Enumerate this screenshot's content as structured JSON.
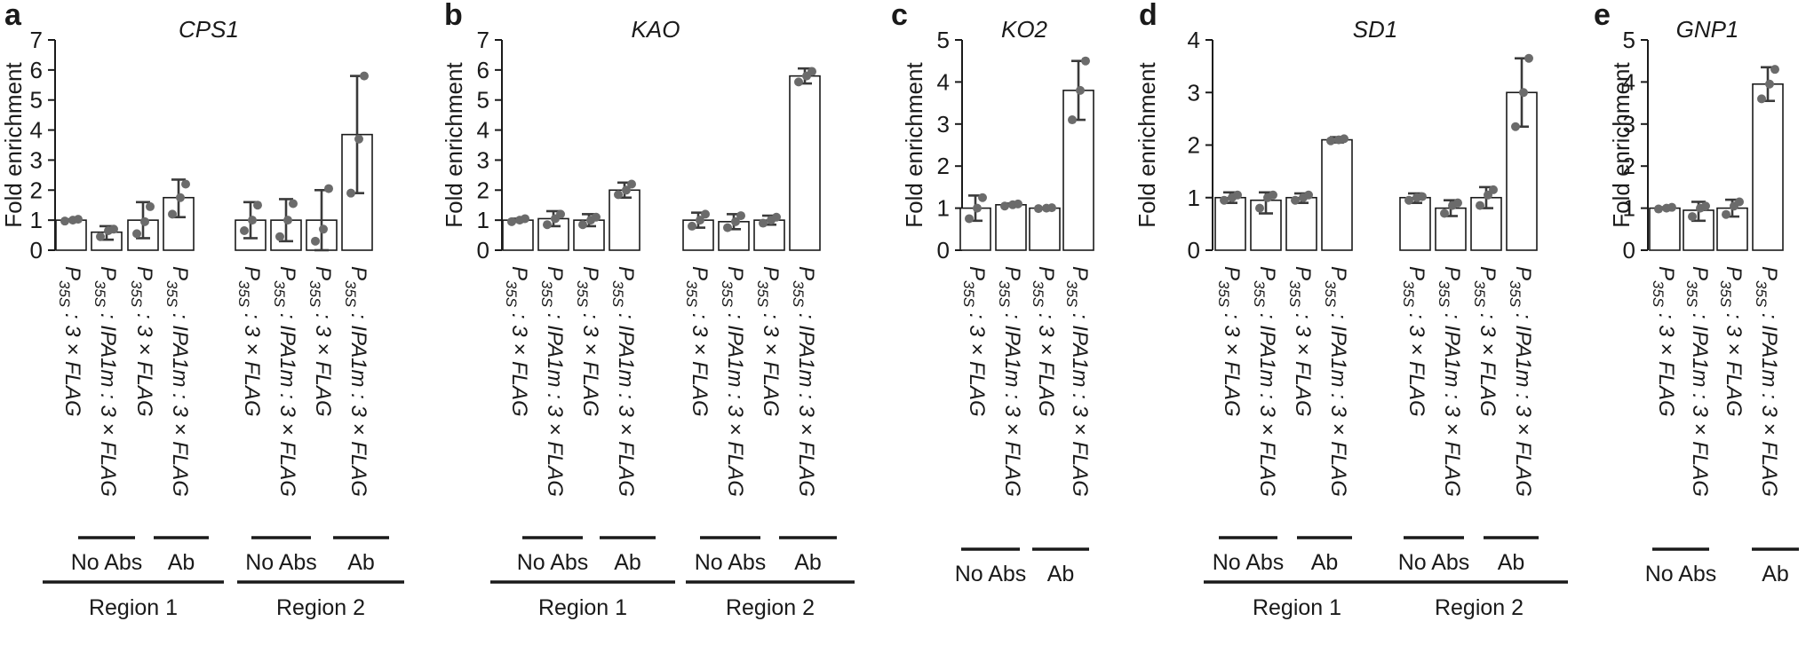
{
  "colors": {
    "bar_fill": "#ffffff",
    "bar_stroke": "#1a1a1a",
    "dot": "#6b6b6b",
    "error": "#3a3a3a"
  },
  "chart_data": [
    {
      "panel": "a",
      "type": "bar",
      "title": "CPS1",
      "ylabel": "Fold enrichment",
      "ylim": [
        0,
        7
      ],
      "yticks": [
        0,
        1,
        2,
        3,
        4,
        5,
        6,
        7
      ],
      "categories": [
        "3 × FLAG",
        "IPA1m : 3 × FLAG",
        "3 × FLAG",
        "IPA1m : 3 × FLAG",
        "3 × FLAG",
        "IPA1m : 3 × FLAG",
        "3 × FLAG",
        "IPA1m : 3 × FLAG"
      ],
      "category_prefix": "P",
      "category_subscript": "35S",
      "category_separator": " : ",
      "values": [
        1.0,
        0.6,
        1.0,
        1.75,
        1.0,
        1.0,
        1.0,
        3.85
      ],
      "err_low": [
        0.97,
        0.35,
        0.4,
        1.1,
        0.4,
        0.3,
        0.0,
        1.9
      ],
      "err_high": [
        1.03,
        0.8,
        1.6,
        2.35,
        1.6,
        1.7,
        2.0,
        5.8
      ],
      "points": [
        [
          0.97,
          1.0,
          1.03
        ],
        [
          0.45,
          0.65,
          0.7
        ],
        [
          0.55,
          0.95,
          1.45
        ],
        [
          1.2,
          1.75,
          2.2
        ],
        [
          0.65,
          1.0,
          1.5
        ],
        [
          0.45,
          1.0,
          1.55
        ],
        [
          0.3,
          0.7,
          2.05
        ],
        [
          1.9,
          3.7,
          5.8
        ]
      ],
      "antibody_groups": [
        "No Abs",
        "Ab",
        "No Abs",
        "Ab"
      ],
      "regions": [
        "Region 1",
        "Region 2"
      ]
    },
    {
      "panel": "b",
      "type": "bar",
      "title": "KAO",
      "ylabel": "Fold enrichment",
      "ylim": [
        0,
        7
      ],
      "yticks": [
        0,
        1,
        2,
        3,
        4,
        5,
        6,
        7
      ],
      "categories": [
        "3 × FLAG",
        "IPA1m : 3 × FLAG",
        "3 × FLAG",
        "IPA1m : 3 × FLAG",
        "3 × FLAG",
        "IPA1m : 3 × FLAG",
        "3 × FLAG",
        "IPA1m : 3 × FLAG"
      ],
      "category_prefix": "P",
      "category_subscript": "35S",
      "category_separator": " : ",
      "values": [
        1.0,
        1.05,
        1.0,
        2.0,
        1.0,
        0.95,
        1.0,
        5.8
      ],
      "err_low": [
        0.95,
        0.8,
        0.8,
        1.75,
        0.75,
        0.7,
        0.85,
        5.55
      ],
      "err_high": [
        1.05,
        1.3,
        1.2,
        2.25,
        1.25,
        1.2,
        1.15,
        6.05
      ],
      "points": [
        [
          0.95,
          1.0,
          1.05
        ],
        [
          0.85,
          1.05,
          1.2
        ],
        [
          0.85,
          1.0,
          1.1
        ],
        [
          1.85,
          2.0,
          2.2
        ],
        [
          0.8,
          1.0,
          1.2
        ],
        [
          0.75,
          0.95,
          1.15
        ],
        [
          0.9,
          1.0,
          1.1
        ],
        [
          5.6,
          5.8,
          5.95
        ]
      ],
      "antibody_groups": [
        "No Abs",
        "Ab",
        "No Abs",
        "Ab"
      ],
      "regions": [
        "Region 1",
        "Region 2"
      ]
    },
    {
      "panel": "c",
      "type": "bar",
      "title": "KO2",
      "ylabel": "Fold enrichment",
      "ylim": [
        0,
        5
      ],
      "yticks": [
        0,
        1,
        2,
        3,
        4,
        5
      ],
      "categories": [
        "3 × FLAG",
        "IPA1m : 3 × FLAG",
        "3 × FLAG",
        "IPA1m : 3 × FLAG"
      ],
      "category_prefix": "P",
      "category_subscript": "35S",
      "category_separator": " : ",
      "values": [
        1.0,
        1.08,
        1.0,
        3.8
      ],
      "err_low": [
        0.7,
        1.05,
        0.99,
        3.1
      ],
      "err_high": [
        1.3,
        1.11,
        1.01,
        4.5
      ],
      "points": [
        [
          0.75,
          1.0,
          1.25
        ],
        [
          1.05,
          1.08,
          1.1
        ],
        [
          0.99,
          1.0,
          1.01
        ],
        [
          3.1,
          3.8,
          4.5
        ]
      ],
      "antibody_groups": [
        "No Abs",
        "Ab"
      ],
      "regions": []
    },
    {
      "panel": "d",
      "type": "bar",
      "title": "SD1",
      "ylabel": "Fold enrichment",
      "ylim": [
        0,
        4
      ],
      "yticks": [
        0,
        1,
        2,
        3,
        4
      ],
      "categories": [
        "3 × FLAG",
        "IPA1m : 3 × FLAG",
        "3 × FLAG",
        "IPA1m : 3 × FLAG",
        "3 × FLAG",
        "IPA1m : 3 × FLAG",
        "3 × FLAG",
        "IPA1m : 3 × FLAG"
      ],
      "category_prefix": "P",
      "category_subscript": "35S",
      "category_separator": " : ",
      "values": [
        1.0,
        0.95,
        1.0,
        2.1,
        1.0,
        0.8,
        1.0,
        3.0
      ],
      "err_low": [
        0.9,
        0.7,
        0.9,
        2.05,
        0.9,
        0.65,
        0.8,
        2.35
      ],
      "err_high": [
        1.1,
        1.1,
        1.08,
        2.15,
        1.08,
        0.95,
        1.2,
        3.65
      ],
      "points": [
        [
          0.95,
          1.0,
          1.05
        ],
        [
          0.8,
          1.0,
          1.05
        ],
        [
          0.95,
          1.0,
          1.05
        ],
        [
          2.08,
          2.1,
          2.12
        ],
        [
          0.95,
          1.0,
          1.02
        ],
        [
          0.7,
          0.85,
          0.9
        ],
        [
          0.85,
          1.05,
          1.15
        ],
        [
          2.35,
          3.0,
          3.65
        ]
      ],
      "antibody_groups": [
        "No Abs",
        "Ab",
        "No Abs",
        "Ab"
      ],
      "regions": [
        "Region 1",
        "Region 2"
      ]
    },
    {
      "panel": "e",
      "type": "bar",
      "title": "GNP1",
      "ylabel": "Fold enrichment",
      "ylim": [
        0,
        5
      ],
      "yticks": [
        0,
        1,
        2,
        3,
        4,
        5
      ],
      "categories": [
        "3 × FLAG",
        "IPA1m : 3 × FLAG",
        "3 × FLAG",
        "IPA1m : 3 × FLAG"
      ],
      "category_prefix": "P",
      "category_subscript": "35S",
      "category_separator": " : ",
      "values": [
        1.0,
        0.95,
        1.0,
        3.95
      ],
      "err_low": [
        0.98,
        0.7,
        0.8,
        3.55
      ],
      "err_high": [
        1.02,
        1.15,
        1.2,
        4.35
      ],
      "points": [
        [
          0.98,
          1.0,
          1.02
        ],
        [
          0.8,
          1.0,
          1.05
        ],
        [
          0.85,
          1.05,
          1.15
        ],
        [
          3.6,
          3.95,
          4.3
        ]
      ],
      "antibody_groups": [
        "No Abs",
        "Ab"
      ],
      "regions": []
    }
  ]
}
